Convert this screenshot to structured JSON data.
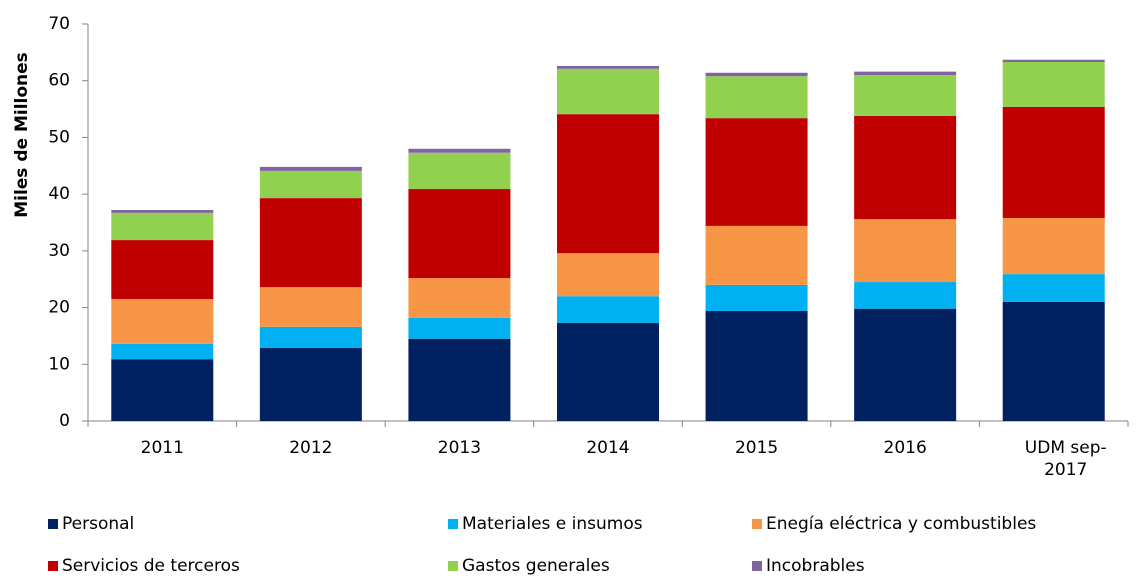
{
  "chart_data": {
    "type": "stacked_bar",
    "y_label": "Miles de Millones",
    "categories": [
      "2011",
      "2012",
      "2013",
      "2014",
      "2015",
      "2016",
      "UDM sep-2017"
    ],
    "series": [
      {
        "name": "Personal",
        "color": "#002060",
        "values": [
          10.9,
          12.9,
          14.5,
          17.3,
          19.4,
          19.8,
          21.0
        ]
      },
      {
        "name": "Materiales e insumos",
        "color": "#00b0f0",
        "values": [
          2.7,
          3.7,
          3.7,
          4.7,
          4.6,
          4.7,
          4.9
        ]
      },
      {
        "name": "Enegía eléctrica y combustibles",
        "color": "#f79646",
        "values": [
          7.9,
          7.0,
          7.0,
          7.6,
          10.4,
          11.1,
          9.9
        ]
      },
      {
        "name": "Servicios de terceros",
        "color": "#c00000",
        "values": [
          10.4,
          15.7,
          15.7,
          24.5,
          19.0,
          18.2,
          19.6
        ]
      },
      {
        "name": "Gastos generales",
        "color": "#92d050",
        "values": [
          4.8,
          4.8,
          6.4,
          8.0,
          7.4,
          7.2,
          7.9
        ]
      },
      {
        "name": "Incobrables",
        "color": "#8064a2",
        "values": [
          0.5,
          0.7,
          0.7,
          0.5,
          0.6,
          0.6,
          0.4
        ]
      }
    ],
    "ylim": [
      0,
      70
    ],
    "yticks": [
      0,
      10,
      20,
      30,
      40,
      50,
      60,
      70
    ]
  }
}
